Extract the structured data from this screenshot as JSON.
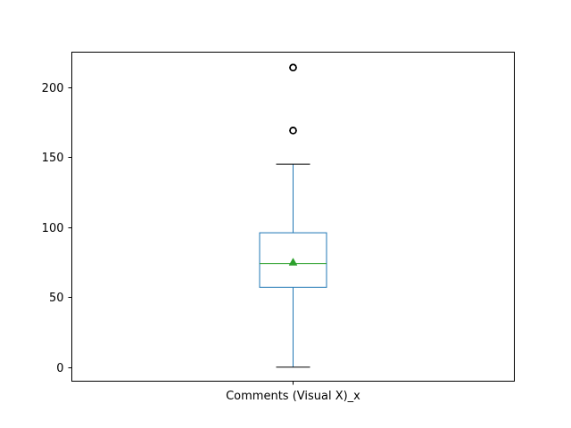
{
  "chart_data": {
    "type": "box",
    "categories": [
      "Comments (Visual X)_x"
    ],
    "boxes": [
      {
        "label": "Comments (Visual X)_x",
        "whisker_low": 0,
        "q1": 57,
        "median": 74,
        "mean": 75,
        "q3": 96,
        "whisker_high": 145,
        "outliers": [
          169,
          169,
          169,
          214,
          214,
          214
        ]
      }
    ],
    "ylim": [
      -10,
      225
    ],
    "yticks": [
      0,
      50,
      100,
      150,
      200
    ],
    "yticklabels": [
      "0",
      "50",
      "100",
      "150",
      "200"
    ],
    "grid": false,
    "colors": {
      "box": "#1f77b4",
      "median": "#2ca02c",
      "mean_marker": "#2ca02c",
      "whisker_cap": "#000000",
      "outlier": "#000000"
    }
  }
}
